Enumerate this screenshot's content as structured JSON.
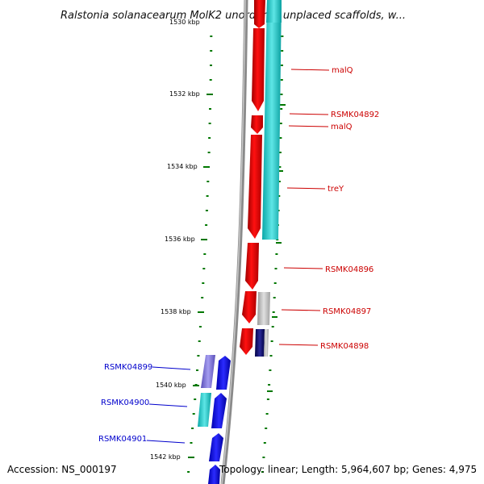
{
  "title": "Ralstonia solanacearum MolK2 unordered unplaced scaffolds, w...",
  "title_overlap_label": "1530 kbp",
  "axis": {
    "unit": "kbp",
    "tick_labels": [
      "1532 kbp",
      "1534 kbp",
      "1536 kbp",
      "1538 kbp",
      "1540 kbp",
      "1542 kbp"
    ]
  },
  "genes_right": [
    {
      "name": "malQ",
      "color": "#cc0000"
    },
    {
      "name": "RSMK04892",
      "color": "#cc0000"
    },
    {
      "name": "malQ",
      "color": "#cc0000"
    },
    {
      "name": "treY",
      "color": "#cc0000"
    },
    {
      "name": "RSMK04896",
      "color": "#cc0000"
    },
    {
      "name": "RSMK04897",
      "color": "#cc0000"
    },
    {
      "name": "RSMK04898",
      "color": "#cc0000"
    }
  ],
  "genes_left": [
    {
      "name": "RSMK04899",
      "color": "#0000cc"
    },
    {
      "name": "RSMK04900",
      "color": "#0000cc"
    },
    {
      "name": "RSMK04901",
      "color": "#0000cc"
    }
  ],
  "colors": {
    "forward_strand": "#ee0000",
    "reverse_strand": "#0000ee",
    "cyan_feature": "#11c4c4",
    "grey_feature": "#bcbcbc",
    "purple_feature": "#7a6ed0",
    "navy_feature": "#000066",
    "backbone": "#8a8a8a",
    "tick_color": "#007700"
  },
  "footer": {
    "accession": "Accession: NS_000197",
    "summary": "Topology: linear; Length: 5,964,607 bp; Genes: 4,975"
  }
}
